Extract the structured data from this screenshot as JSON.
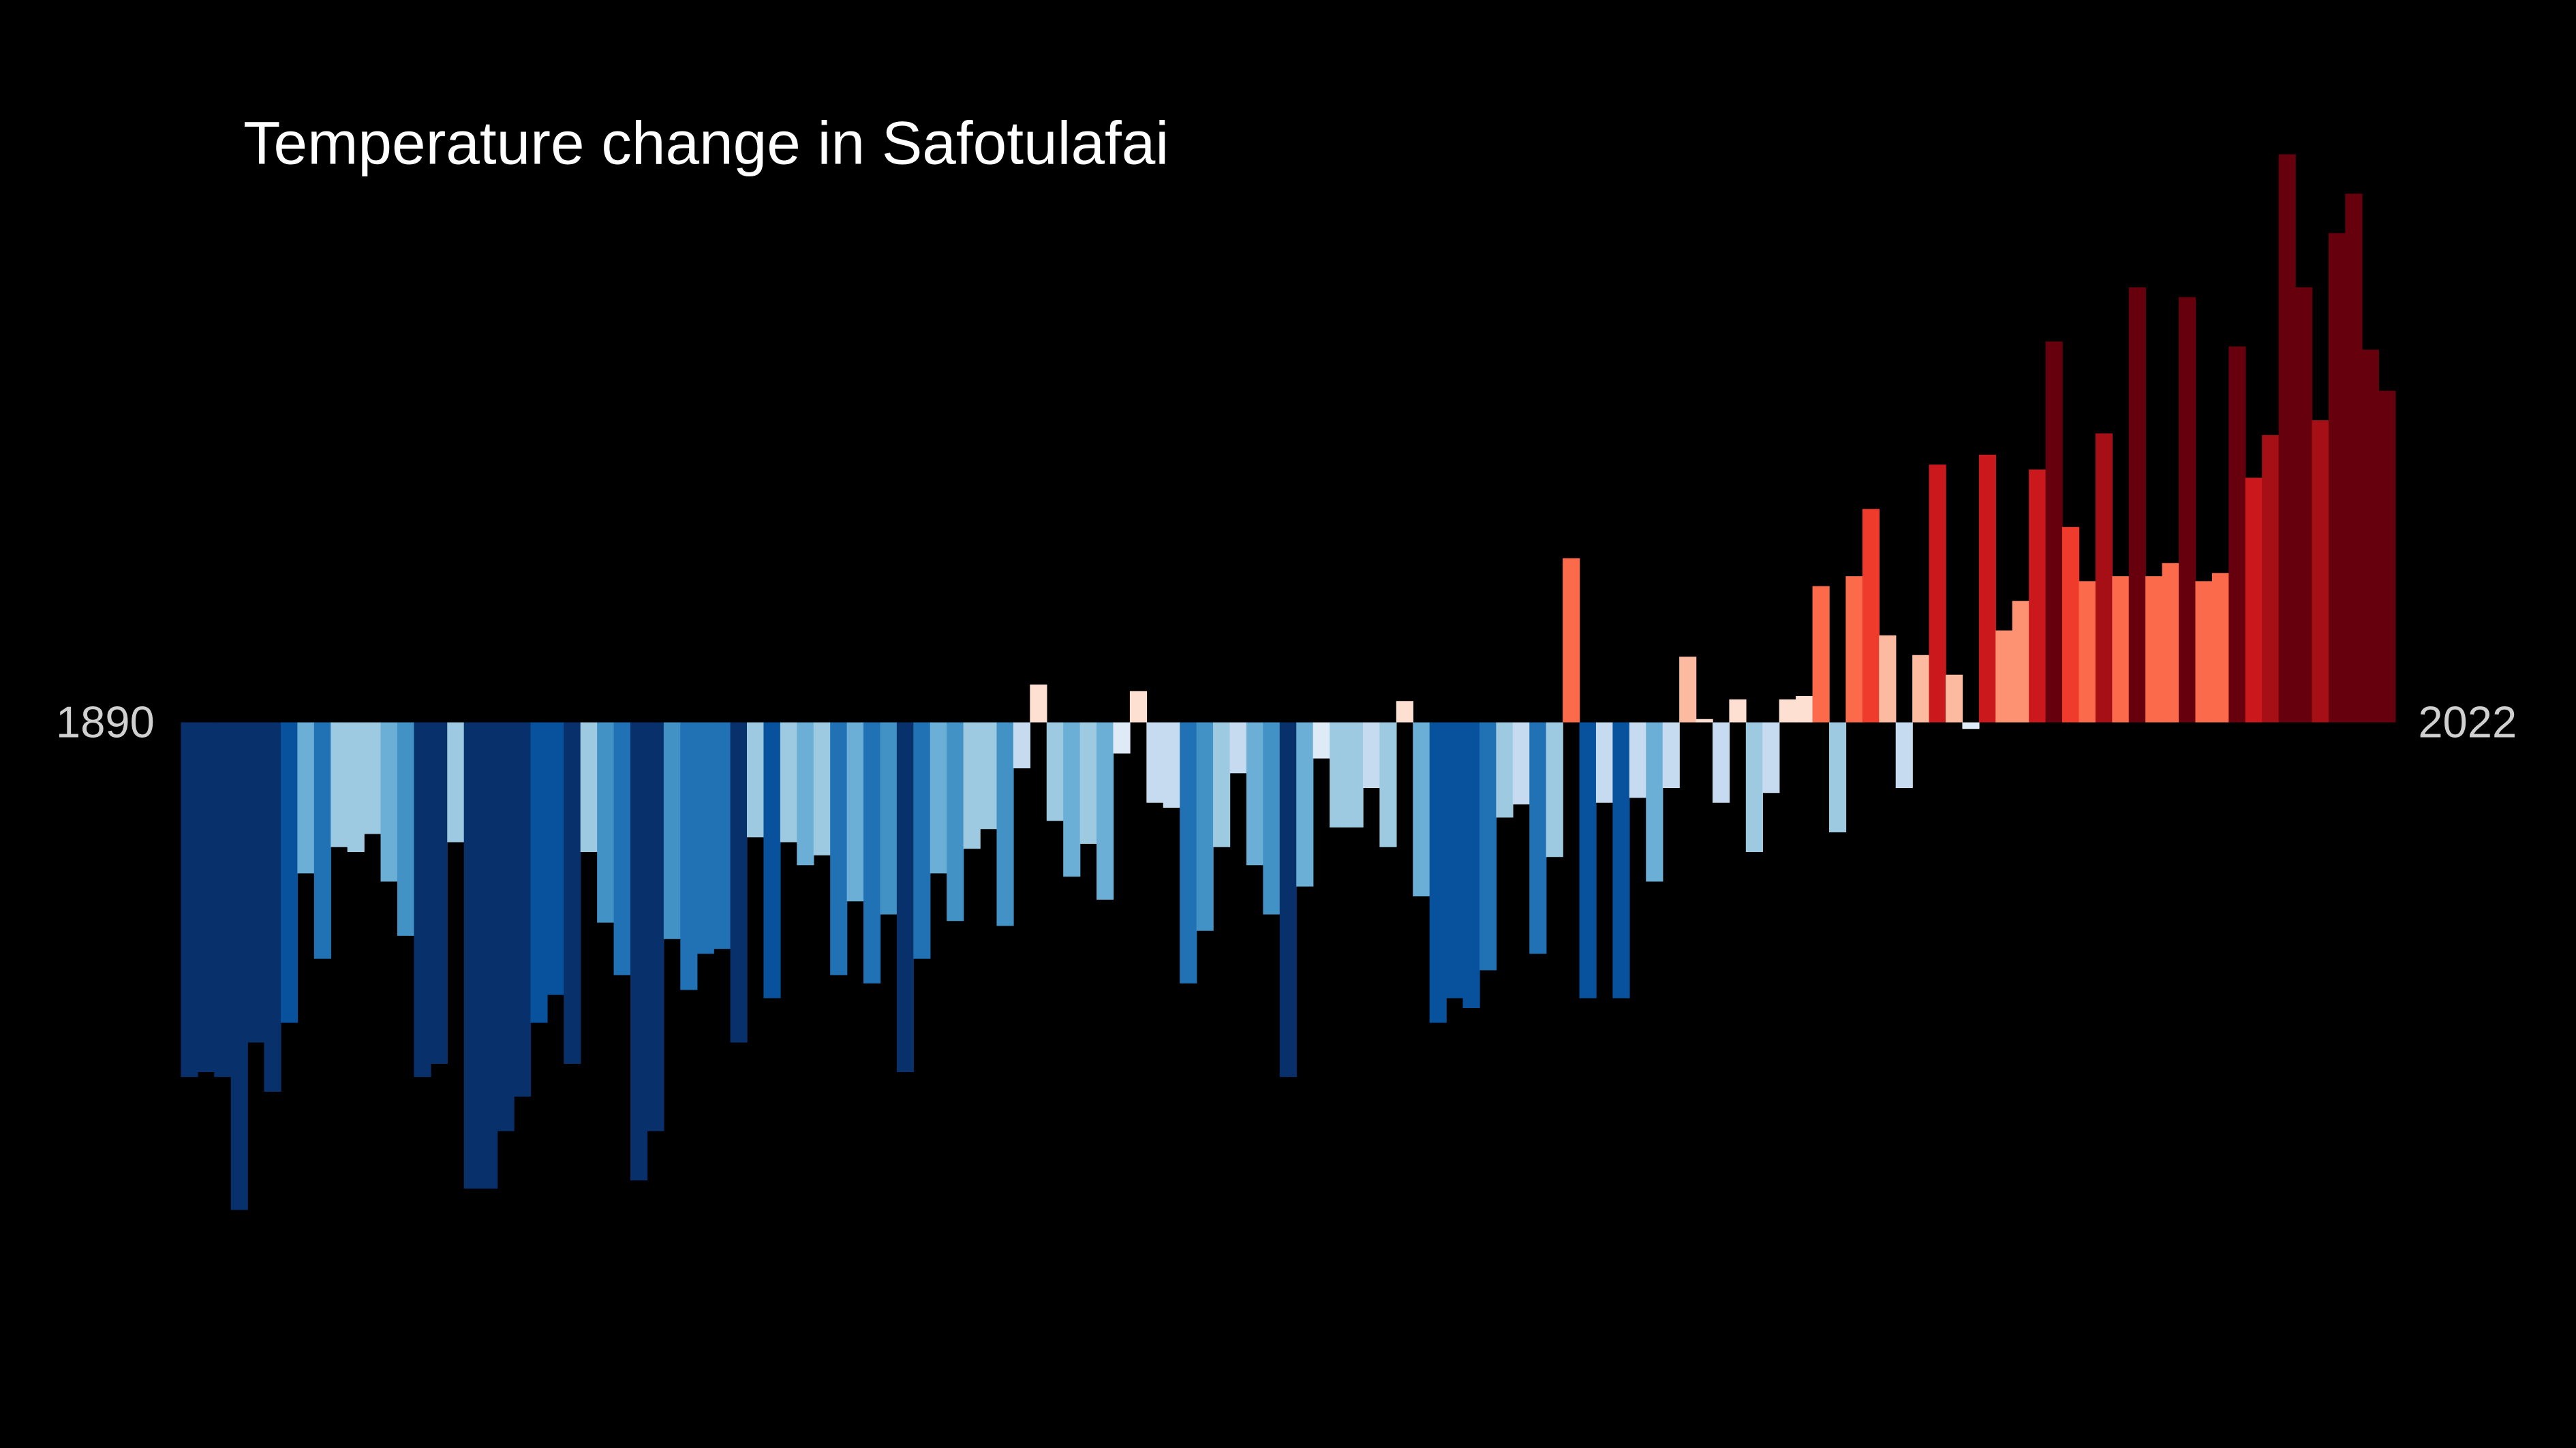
{
  "chart_data": {
    "type": "bar",
    "title": "Temperature change in Safotulafai",
    "x": [
      1890,
      1891,
      1892,
      1893,
      1894,
      1895,
      1896,
      1897,
      1898,
      1899,
      1900,
      1901,
      1902,
      1903,
      1904,
      1905,
      1906,
      1907,
      1908,
      1909,
      1910,
      1911,
      1912,
      1913,
      1914,
      1915,
      1916,
      1917,
      1918,
      1919,
      1920,
      1921,
      1922,
      1923,
      1924,
      1925,
      1926,
      1927,
      1928,
      1929,
      1930,
      1931,
      1932,
      1933,
      1934,
      1935,
      1936,
      1937,
      1938,
      1939,
      1940,
      1941,
      1942,
      1943,
      1944,
      1945,
      1946,
      1947,
      1948,
      1949,
      1950,
      1951,
      1952,
      1953,
      1954,
      1955,
      1956,
      1957,
      1958,
      1959,
      1960,
      1961,
      1962,
      1963,
      1964,
      1965,
      1966,
      1967,
      1968,
      1969,
      1970,
      1971,
      1972,
      1973,
      1974,
      1975,
      1976,
      1977,
      1978,
      1979,
      1980,
      1981,
      1982,
      1983,
      1984,
      1985,
      1986,
      1987,
      1988,
      1989,
      1990,
      1991,
      1992,
      1993,
      1994,
      1995,
      1996,
      1997,
      1998,
      1999,
      2000,
      2001,
      2002,
      2003,
      2004,
      2005,
      2006,
      2007,
      2008,
      2009,
      2010,
      2011,
      2012,
      2013,
      2014,
      2015,
      2016,
      2017,
      2018,
      2019,
      2020,
      2021,
      2022
    ],
    "values": [
      -2.16,
      -2.13,
      -2.16,
      -2.97,
      -1.95,
      -2.25,
      -1.83,
      -0.92,
      -1.44,
      -0.76,
      -0.79,
      -0.68,
      -0.97,
      -1.3,
      -2.16,
      -2.08,
      -0.73,
      -2.84,
      -2.84,
      -2.49,
      -2.28,
      -1.83,
      -1.66,
      -2.08,
      -0.79,
      -1.22,
      -1.54,
      -2.79,
      -2.49,
      -1.32,
      -1.63,
      -1.41,
      -1.38,
      -1.95,
      -0.7,
      -1.68,
      -0.73,
      -0.87,
      -0.81,
      -1.54,
      -1.09,
      -1.59,
      -1.17,
      -2.13,
      -1.44,
      -0.92,
      -1.21,
      -0.77,
      -0.65,
      -1.24,
      -0.28,
      0.23,
      -0.6,
      -0.94,
      -0.74,
      -1.08,
      -0.19,
      0.19,
      -0.49,
      -0.52,
      -1.59,
      -1.27,
      -0.76,
      -0.31,
      -0.87,
      -1.17,
      -2.16,
      -1.0,
      -0.22,
      -0.64,
      -0.64,
      -0.4,
      -0.76,
      0.13,
      -1.06,
      -1.83,
      -1.68,
      -1.74,
      -1.51,
      -0.58,
      -0.5,
      -1.41,
      -0.82,
      1.0,
      -1.68,
      -0.49,
      -1.68,
      -0.46,
      -0.97,
      -0.4,
      0.4,
      0.02,
      -0.49,
      0.14,
      -0.79,
      -0.43,
      0.14,
      0.16,
      0.83,
      -0.67,
      0.89,
      1.3,
      0.53,
      -0.4,
      0.41,
      1.57,
      0.29,
      -0.04,
      1.63,
      0.56,
      0.74,
      1.54,
      2.32,
      1.19,
      0.86,
      1.76,
      0.89,
      2.65,
      0.89,
      0.97,
      2.59,
      0.86,
      0.91,
      2.29,
      1.49,
      1.75,
      3.46,
      2.65,
      1.84,
      2.98,
      3.22,
      2.27,
      2.02
    ],
    "xlim": [
      1890,
      2022
    ],
    "xticks": [
      1890,
      2022
    ],
    "ylim": [
      -4.42,
      4.4
    ],
    "colormap": "RdBu_r",
    "background": "#000000"
  }
}
